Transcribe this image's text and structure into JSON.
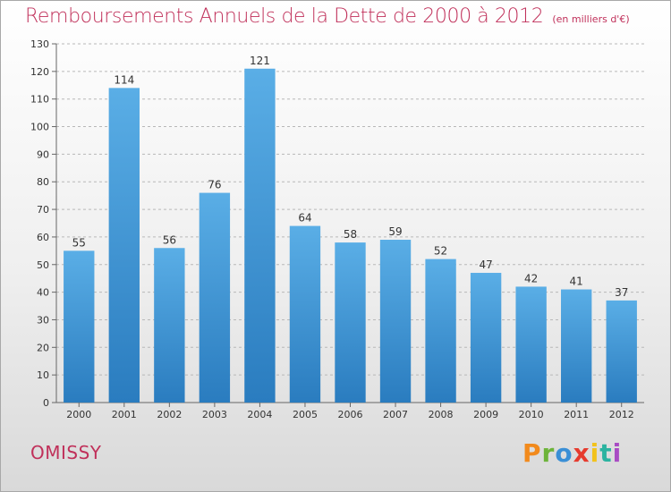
{
  "header": {
    "title": "Remboursements Annuels de la Dette de 2000 à 2012",
    "subtitle": "(en milliers d'€)"
  },
  "footer": {
    "commune": "OMISSY",
    "logo_text": "Proxiti"
  },
  "colors": {
    "title": "#c0305a",
    "bar_top": "#5aaee6",
    "bar_bottom": "#2a7cbf",
    "grid": "#b8b8b8"
  },
  "chart_data": {
    "type": "bar",
    "title": "Remboursements Annuels de la Dette de 2000 à 2012",
    "subtitle": "(en milliers d'€)",
    "categories": [
      "2000",
      "2001",
      "2002",
      "2003",
      "2004",
      "2005",
      "2006",
      "2007",
      "2008",
      "2009",
      "2010",
      "2011",
      "2012"
    ],
    "values": [
      55,
      114,
      56,
      76,
      121,
      64,
      58,
      59,
      52,
      47,
      42,
      41,
      37
    ],
    "ylim": [
      0,
      130
    ],
    "yticks": [
      0,
      10,
      20,
      30,
      40,
      50,
      60,
      70,
      80,
      90,
      100,
      110,
      120,
      130
    ],
    "grid": true,
    "xlabel": "",
    "ylabel": ""
  }
}
